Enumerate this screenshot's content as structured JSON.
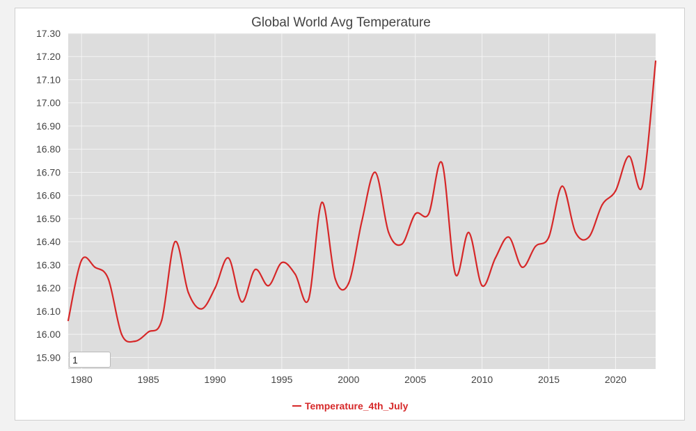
{
  "chart_data": {
    "type": "line",
    "title": "Global World Avg Temperature",
    "xlabel": "",
    "ylabel": "",
    "xlim": [
      1979,
      2023
    ],
    "ylim": [
      15.85,
      17.3
    ],
    "x_ticks": [
      1980,
      1985,
      1990,
      1995,
      2000,
      2005,
      2010,
      2015,
      2020
    ],
    "y_ticks": [
      15.9,
      16.0,
      16.1,
      16.2,
      16.3,
      16.4,
      16.5,
      16.6,
      16.7,
      16.8,
      16.9,
      17.0,
      17.1,
      17.2,
      17.3
    ],
    "grid": true,
    "legend_position": "bottom",
    "series": [
      {
        "name": "Temperature_4th_July",
        "color": "#d62728",
        "x": [
          1979,
          1980,
          1981,
          1982,
          1983,
          1984,
          1985,
          1986,
          1987,
          1988,
          1989,
          1990,
          1991,
          1992,
          1993,
          1994,
          1995,
          1996,
          1997,
          1998,
          1999,
          2000,
          2001,
          2002,
          2003,
          2004,
          2005,
          2006,
          2007,
          2008,
          2009,
          2010,
          2011,
          2012,
          2013,
          2014,
          2015,
          2016,
          2017,
          2018,
          2019,
          2020,
          2021,
          2022,
          2023
        ],
        "y": [
          16.06,
          16.32,
          16.29,
          16.24,
          16.0,
          15.97,
          16.01,
          16.06,
          16.4,
          16.18,
          16.11,
          16.2,
          16.33,
          16.14,
          16.28,
          16.21,
          16.31,
          16.26,
          16.15,
          16.57,
          16.24,
          16.22,
          16.49,
          16.7,
          16.44,
          16.39,
          16.52,
          16.52,
          16.74,
          16.26,
          16.44,
          16.21,
          16.33,
          16.42,
          16.29,
          16.38,
          16.42,
          16.64,
          16.44,
          16.42,
          16.56,
          16.62,
          16.77,
          16.64,
          17.18
        ]
      }
    ]
  },
  "controls": {
    "smoothing_value": "1"
  }
}
